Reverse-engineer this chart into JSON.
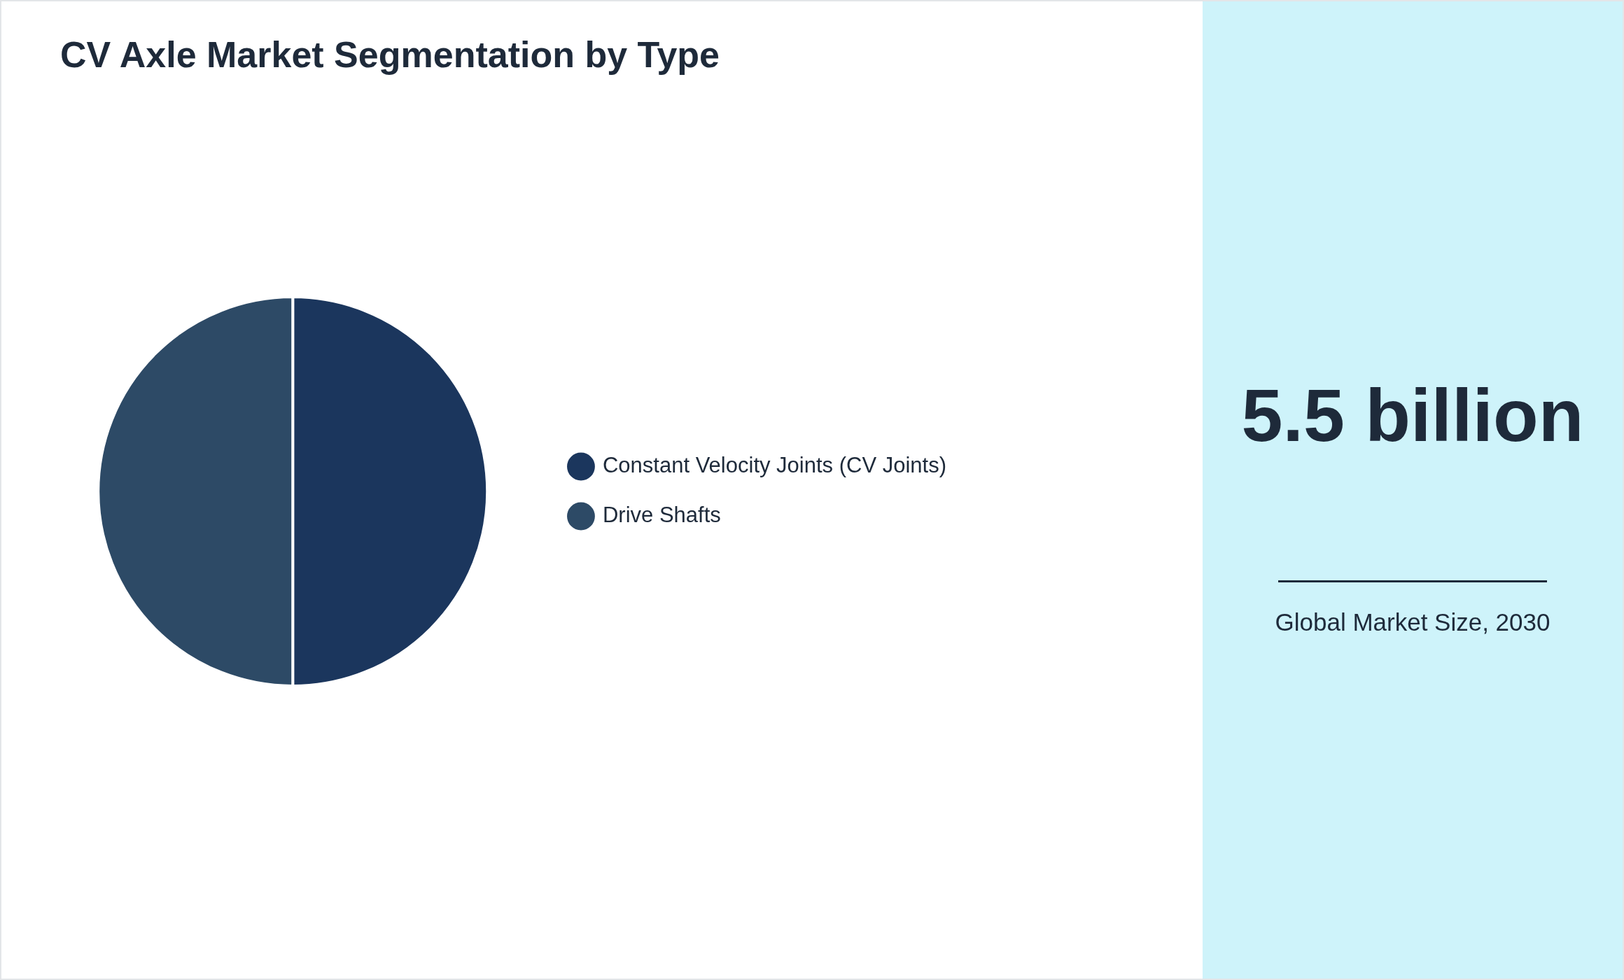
{
  "chart_data": [
    {
      "type": "pie",
      "title": "CV Axle Market Segmentation by Type",
      "categories": [
        "Constant Velocity Joints (CV Joints)",
        "Drive Shafts"
      ],
      "values": [
        50,
        50
      ],
      "colors": [
        "#1b365d",
        "#2d4a66"
      ],
      "legend": "right"
    },
    {
      "type": "other",
      "title": "5.5 billion",
      "subtitle": "Global Market Size, 2030"
    }
  ]
}
